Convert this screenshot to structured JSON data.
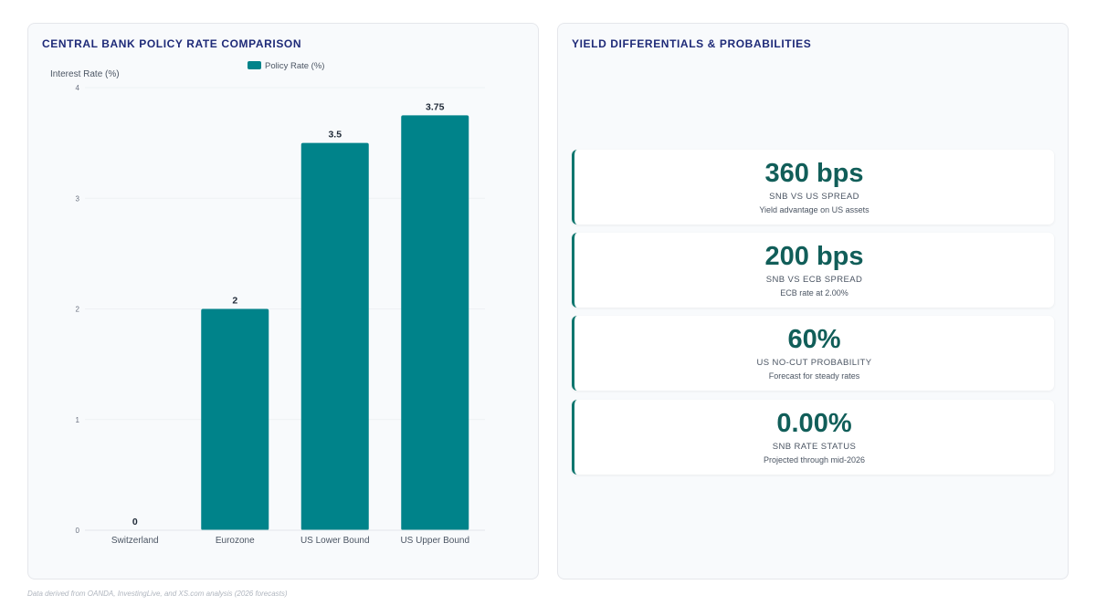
{
  "left_panel": {
    "title": "CENTRAL BANK POLICY RATE COMPARISON"
  },
  "right_panel": {
    "title": "YIELD DIFFERENTIALS & PROBABILITIES"
  },
  "chart_data": {
    "type": "bar",
    "categories": [
      "Switzerland",
      "Eurozone",
      "US Lower Bound",
      "US Upper Bound"
    ],
    "series": [
      {
        "name": "Policy Rate (%)",
        "values": [
          0,
          2,
          3.5,
          3.75
        ]
      }
    ],
    "ylabel": "Interest Rate (%)",
    "xlabel": "",
    "ylim": [
      0,
      4
    ],
    "yticks": [
      "0",
      "1",
      "2",
      "3",
      "4"
    ],
    "data_labels": [
      "0",
      "2",
      "3.5",
      "3.75"
    ],
    "legend": "top-center",
    "grid": true,
    "bar_color": "#00838a"
  },
  "metrics": [
    {
      "value": "360 bps",
      "label": "SNB VS US SPREAD",
      "sub": "Yield advantage on US assets"
    },
    {
      "value": "200 bps",
      "label": "SNB VS ECB SPREAD",
      "sub": "ECB rate at 2.00%"
    },
    {
      "value": "60%",
      "label": "US NO-CUT PROBABILITY",
      "sub": "Forecast for steady rates"
    },
    {
      "value": "0.00%",
      "label": "SNB RATE STATUS",
      "sub": "Projected through mid-2026"
    }
  ],
  "footnote": "Data derived from OANDA, InvestingLive, and XS.com analysis (2026 forecasts)",
  "colors": {
    "accent": "#0f766e",
    "title": "#1e2a78"
  }
}
